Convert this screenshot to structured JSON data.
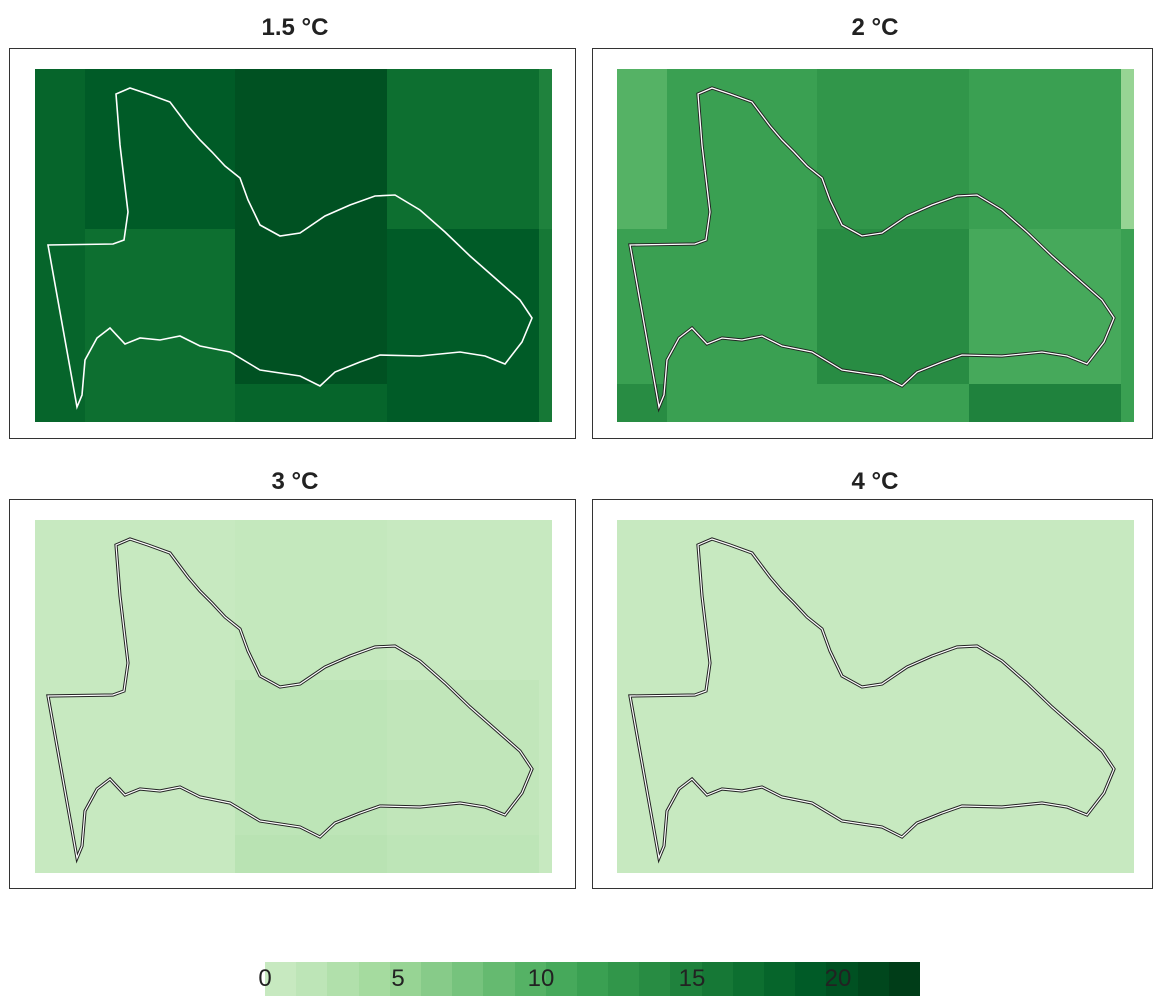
{
  "panels": [
    {
      "title": "1.5 °C"
    },
    {
      "title": "2 °C"
    },
    {
      "title": "3 °C"
    },
    {
      "title": "4 °C"
    }
  ],
  "colorbar": {
    "ticks": [
      "0",
      "5",
      "10",
      "15",
      "20"
    ],
    "colors": [
      "#c7e9c0",
      "#bde5b7",
      "#b1e0ab",
      "#a5db9f",
      "#97d494",
      "#87cb89",
      "#76c37d",
      "#65ba70",
      "#55b265",
      "#46a95b",
      "#3aa052",
      "#31964a",
      "#288c43",
      "#1f823d",
      "#167836",
      "#0d6f30",
      "#06652b",
      "#005b27",
      "#005122",
      "#00471d",
      "#003d18"
    ]
  }
}
